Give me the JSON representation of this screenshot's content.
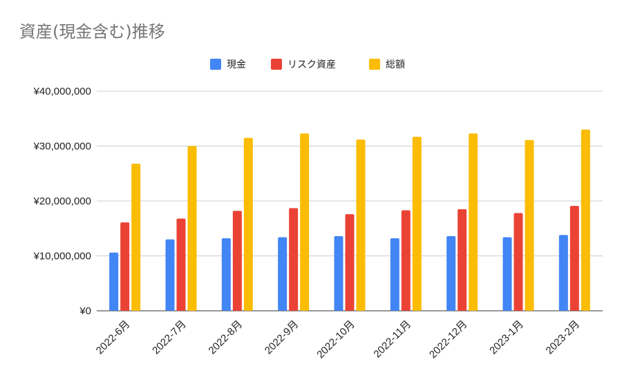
{
  "chart_data": {
    "type": "bar",
    "title": "資産(現金含む)推移",
    "categories": [
      "2022-6月",
      "2022-7月",
      "2022-8月",
      "2022-9月",
      "2022-10月",
      "2022-11月",
      "2022-12月",
      "2023-1月",
      "2023-2月"
    ],
    "series": [
      {
        "name": "現金",
        "color": "#4285f4",
        "values": [
          10600000,
          13000000,
          13200000,
          13400000,
          13600000,
          13200000,
          13600000,
          13400000,
          13800000
        ]
      },
      {
        "name": "リスク資産",
        "color": "#ea4335",
        "values": [
          16100000,
          16800000,
          18200000,
          18700000,
          17600000,
          18300000,
          18500000,
          17800000,
          19100000
        ]
      },
      {
        "name": "総額",
        "color": "#fbbc04",
        "values": [
          26800000,
          30000000,
          31500000,
          32300000,
          31200000,
          31700000,
          32300000,
          31100000,
          33000000
        ]
      }
    ],
    "y_ticks": [
      "¥0",
      "¥10,000,000",
      "¥20,000,000",
      "¥30,000,000",
      "¥40,000,000"
    ],
    "ylim": [
      0,
      40000000
    ],
    "grid": true,
    "legend_position": "top-center"
  }
}
